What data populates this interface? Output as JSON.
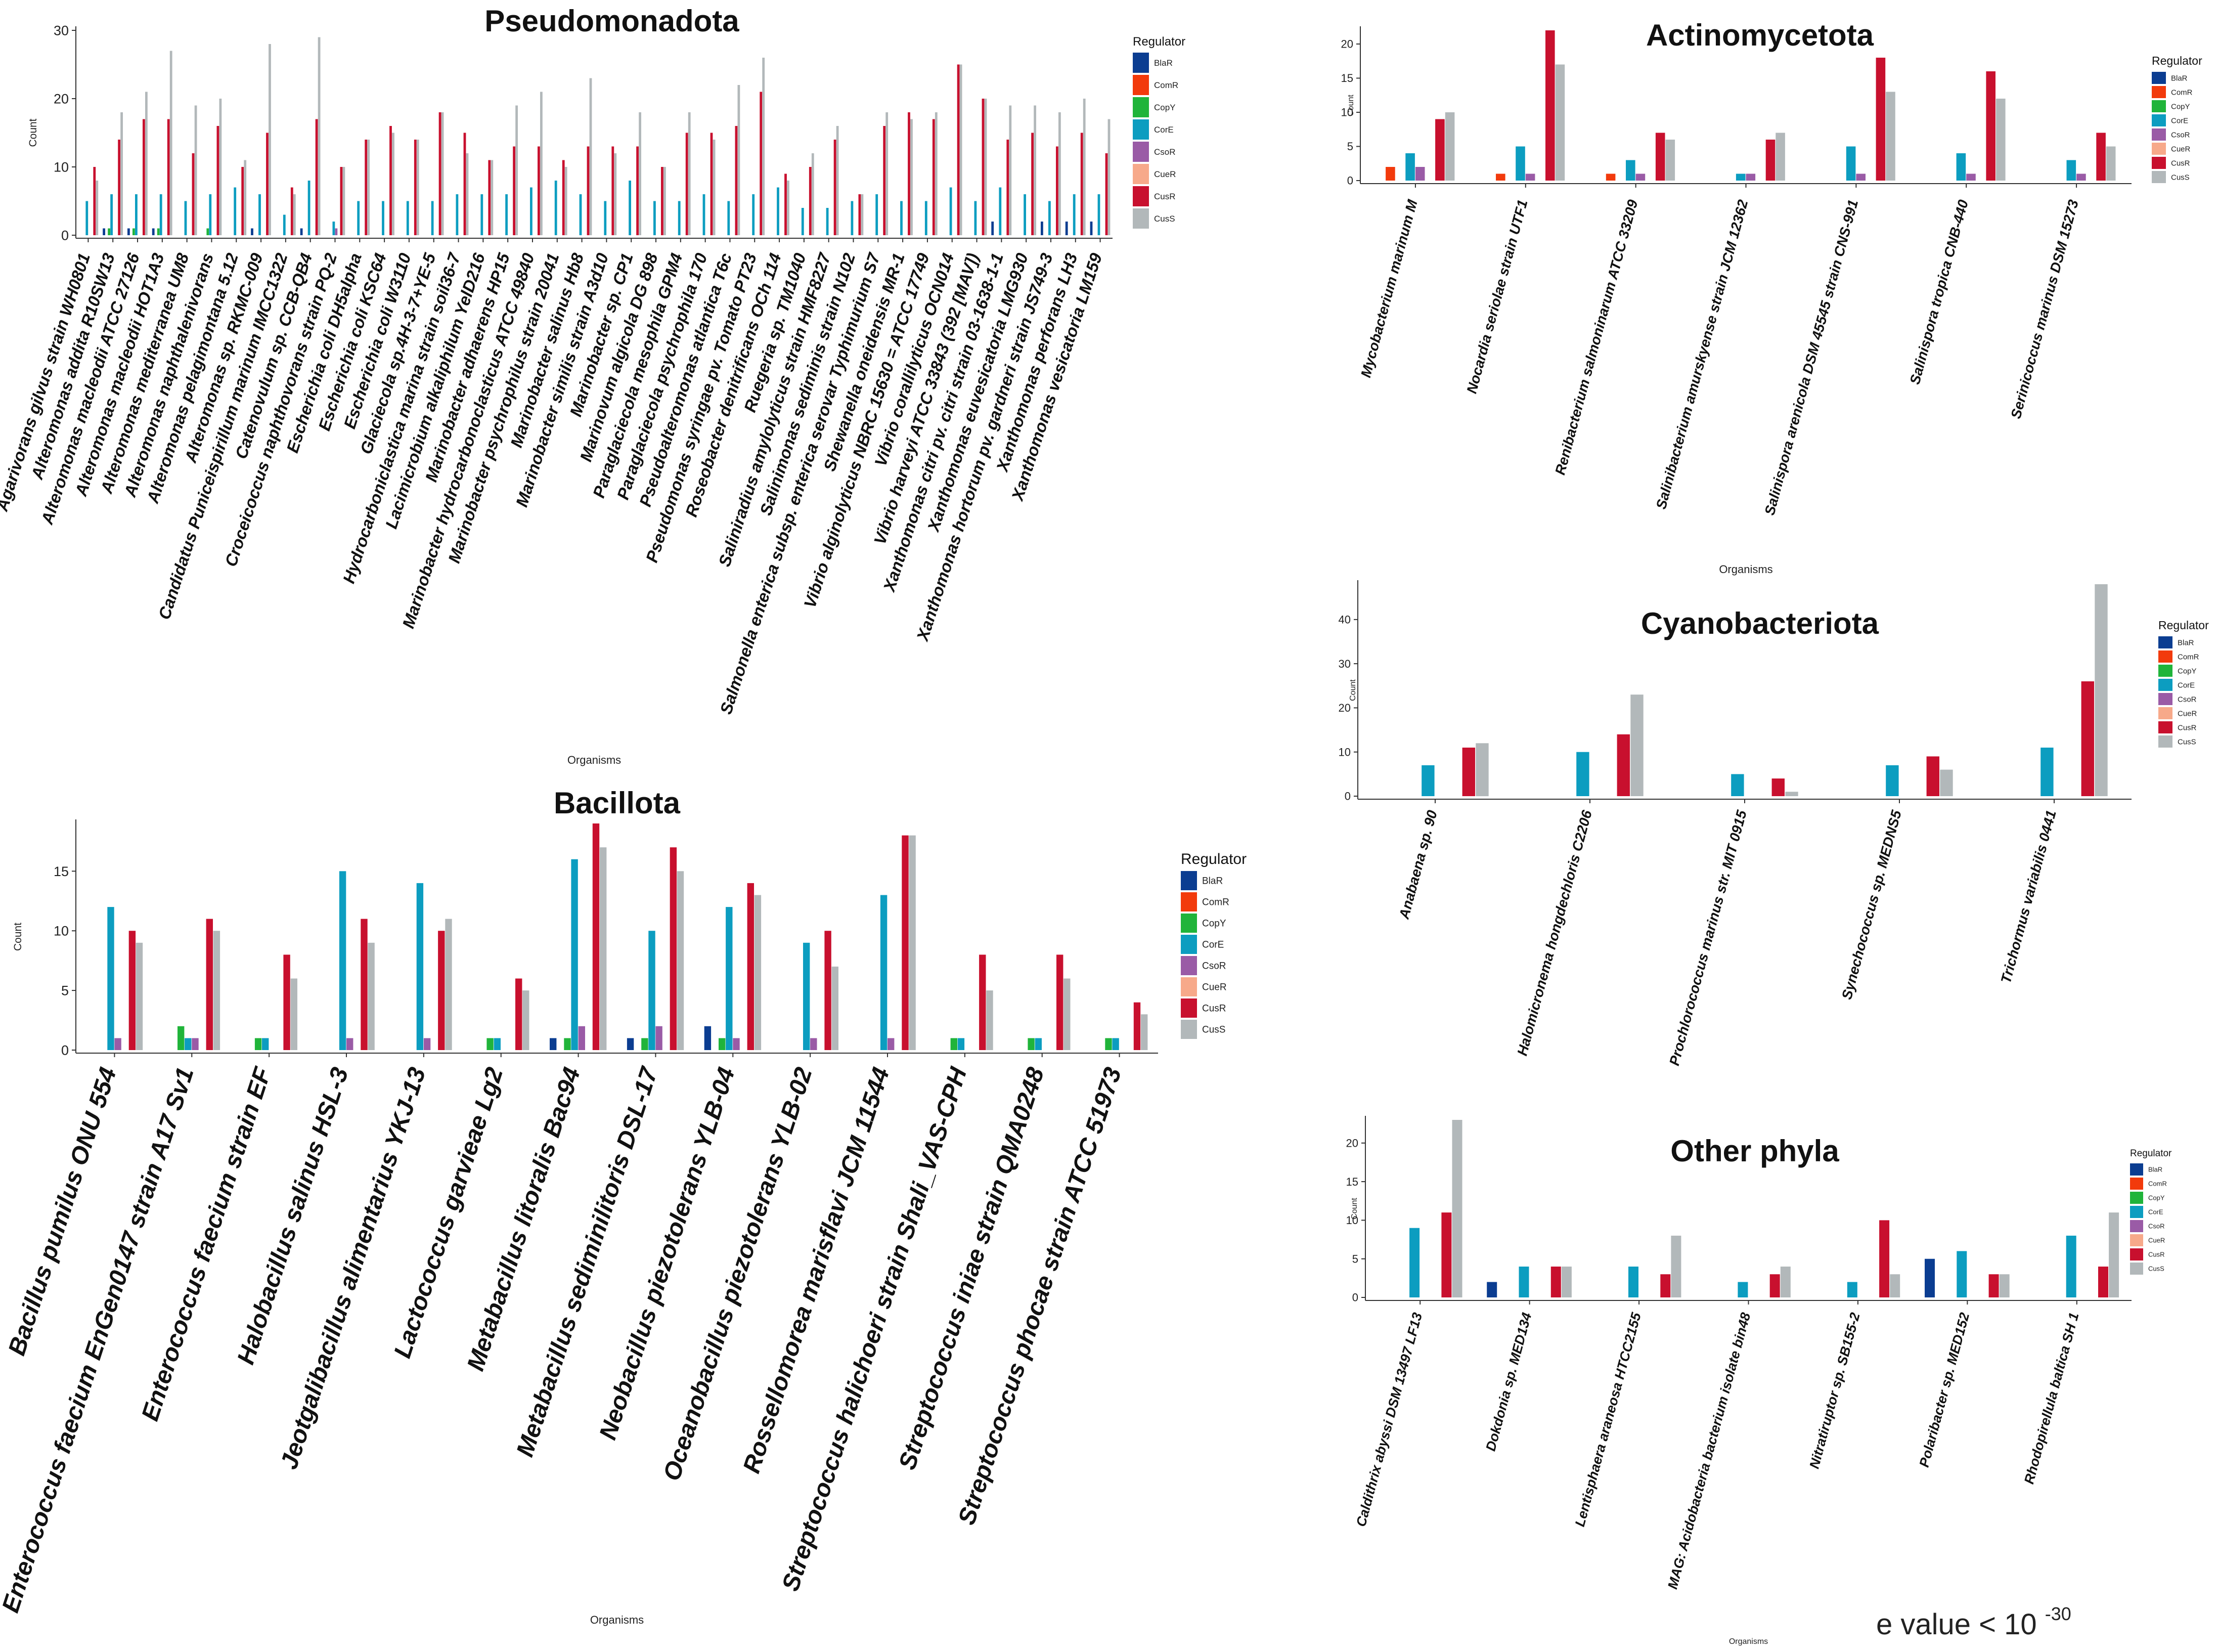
{
  "colors": {
    "BlaR": "#0B3D91",
    "ComR": "#F23A0C",
    "CopY": "#20B43A",
    "CorE": "#0C9DC0",
    "CsoR": "#9A5BA6",
    "CueR": "#F7A98A",
    "CusR": "#C8102E",
    "CusS": "#B2B8BA"
  },
  "footnote": {
    "text": "e value < 10",
    "exponent": "-30"
  },
  "chart_data": [
    {
      "type": "bar",
      "title": "Pseudomonadota",
      "xlabel": "Organisms",
      "ylabel": "Count",
      "ylim": [
        0,
        30
      ],
      "yticks": [
        0,
        10,
        20,
        30
      ],
      "legend_title": "Regulator",
      "legend_position": "right",
      "categories": [
        "Agarivorans gilvus strain WH0801",
        "Alteromonas addita  R10SW13",
        "Alteromonas macleodii ATCC 27126",
        "Alteromonas macleodii HOT1A3",
        "Alteromonas mediterranea UM8",
        "Alteromonas naphthalenivorans",
        "Alteromonas pelagimontana 5.12",
        "Alteromonas sp. RKMC-009",
        "Candidatus Puniceispirillum marinum IMCC1322",
        "Catenovulum sp. CCB-QB4",
        "Croceicoccus naphthovorans strain PQ-2",
        "Escherichia coli DH5alpha",
        "Escherichia coli KSC64",
        "Escherichia coli W3110",
        "Glaciecola sp.4H-3-7+YE-5",
        "Hydrocarboniclastica marina strain soil36-7",
        "Lacimicrobium alkaliphilum YelD216",
        "Marinobacter adhaerens HP15",
        "Marinobacter hydrocarbonoclasticus ATCC 49840",
        "Marinobacter psychrophilus strain 20041",
        "Marinobacter salinus  Hb8",
        "Marinobacter similis strain A3d10",
        "Marinobacter sp. CP1",
        "Marinovum algicola DG 898",
        "Paraglaciecola mesophila GPM4",
        "Paraglaciecola psychrophila 170",
        "Pseudoalteromonas atlantica T6c",
        "Pseudomonas syringae pv. Tomato PT23",
        "Roseobacter denitrificans OCh 114",
        "Ruegeria sp. TM1040",
        "Saliniradius amylolyticus strain HMF8227",
        "Salinimonas sediminis strain N102",
        "Salmonella enterica subsp. enterica serovar Typhimurium S7",
        "Shewanella oneidensis MR-1",
        "Vibrio alginolyticus NBRC 15630 = ATCC 17749",
        "Vibrio corallilyticus OCN014",
        "Vibrio harveyi ATCC 33843 (392 [MAV])",
        "Xanthomonas citri pv. citri strain 03-1638-1-1",
        "Xanthomonas euvesicatoria LMG930",
        "Xanthomonas hortorum pv. gardneri strain JS749-3",
        "Xanthomonas perforans LH3",
        "Xanthomonas vesicatoria LM159"
      ],
      "series": [
        {
          "name": "BlaR",
          "values": [
            0,
            1,
            1,
            1,
            0,
            0,
            0,
            1,
            0,
            1,
            0,
            0,
            0,
            0,
            0,
            0,
            0,
            0,
            0,
            0,
            0,
            0,
            0,
            0,
            0,
            0,
            0,
            0,
            0,
            0,
            0,
            0,
            0,
            0,
            0,
            0,
            0,
            2,
            0,
            2,
            2,
            2
          ]
        },
        {
          "name": "ComR",
          "values": [
            0,
            0,
            0,
            0,
            0,
            0,
            0,
            0,
            0,
            0,
            0,
            0,
            0,
            0,
            0,
            0,
            0,
            0,
            0,
            0,
            0,
            0,
            0,
            0,
            0,
            0,
            0,
            0,
            0,
            0,
            0,
            0,
            0,
            0,
            0,
            0,
            0,
            0,
            0,
            0,
            0,
            0
          ]
        },
        {
          "name": "CopY",
          "values": [
            0,
            1,
            1,
            1,
            0,
            1,
            0,
            0,
            0,
            0,
            0,
            0,
            0,
            0,
            0,
            0,
            0,
            0,
            0,
            0,
            0,
            0,
            0,
            0,
            0,
            0,
            0,
            0,
            0,
            0,
            0,
            0,
            0,
            0,
            0,
            0,
            0,
            0,
            0,
            0,
            0,
            0
          ]
        },
        {
          "name": "CorE",
          "values": [
            5,
            6,
            6,
            6,
            5,
            6,
            7,
            6,
            3,
            8,
            2,
            5,
            5,
            5,
            5,
            6,
            6,
            6,
            7,
            8,
            6,
            5,
            8,
            5,
            5,
            6,
            5,
            6,
            7,
            4,
            4,
            5,
            6,
            5,
            5,
            7,
            5,
            7,
            6,
            5,
            6,
            6
          ]
        },
        {
          "name": "CsoR",
          "values": [
            0,
            0,
            0,
            0,
            0,
            0,
            0,
            0,
            0,
            0,
            1,
            0,
            0,
            0,
            0,
            0,
            0,
            0,
            0,
            0,
            0,
            0,
            0,
            0,
            0,
            0,
            0,
            0,
            0,
            0,
            0,
            0,
            0,
            0,
            0,
            0,
            0,
            0,
            0,
            0,
            0,
            0
          ]
        },
        {
          "name": "CueR",
          "values": [
            0,
            0,
            0,
            0,
            0,
            0,
            0,
            0,
            0,
            0,
            0,
            0,
            0,
            0,
            0,
            0,
            0,
            0,
            0,
            0,
            0,
            0,
            0,
            0,
            0,
            0,
            0,
            0,
            0,
            0,
            0,
            0,
            0,
            0,
            0,
            0,
            0,
            0,
            0,
            0,
            0,
            0
          ]
        },
        {
          "name": "CusR",
          "values": [
            10,
            14,
            17,
            17,
            12,
            16,
            10,
            15,
            7,
            17,
            10,
            14,
            16,
            14,
            18,
            15,
            11,
            13,
            13,
            11,
            13,
            13,
            13,
            10,
            15,
            15,
            16,
            21,
            9,
            10,
            14,
            6,
            16,
            18,
            17,
            25,
            20,
            14,
            15,
            13,
            15,
            12
          ]
        },
        {
          "name": "CusS",
          "values": [
            8,
            18,
            21,
            27,
            19,
            20,
            11,
            28,
            6,
            29,
            10,
            14,
            15,
            14,
            18,
            12,
            11,
            19,
            21,
            10,
            23,
            12,
            18,
            10,
            18,
            14,
            22,
            26,
            8,
            12,
            16,
            6,
            18,
            17,
            18,
            25,
            20,
            19,
            19,
            18,
            20,
            17
          ]
        }
      ]
    },
    {
      "type": "bar",
      "title": "Actinomycetota",
      "xlabel": "Organisms",
      "ylabel": "Count",
      "ylim": [
        0,
        22
      ],
      "yticks": [
        0,
        5,
        10,
        15,
        20
      ],
      "legend_title": "Regulator",
      "legend_position": "right",
      "categories": [
        "Mycobacterium marinum M",
        "Nocardia seriolae strain UTF1",
        "Renibacterium salmoninarum ATCC 33209",
        "Salinibacterium amurskyense strain JCM 12362",
        "Salinispora arenicola DSM 45545 strain CNS-991",
        "Salinispora tropica CNB-440",
        "Serinicoccus marinus DSM 15273"
      ],
      "series": [
        {
          "name": "BlaR",
          "values": [
            0,
            0,
            0,
            0,
            0,
            0,
            0
          ]
        },
        {
          "name": "ComR",
          "values": [
            2,
            1,
            1,
            0,
            0,
            0,
            0
          ]
        },
        {
          "name": "CopY",
          "values": [
            0,
            0,
            0,
            0,
            0,
            0,
            0
          ]
        },
        {
          "name": "CorE",
          "values": [
            4,
            5,
            3,
            1,
            5,
            4,
            3
          ]
        },
        {
          "name": "CsoR",
          "values": [
            2,
            1,
            1,
            1,
            1,
            1,
            1
          ]
        },
        {
          "name": "CueR",
          "values": [
            0,
            0,
            0,
            0,
            0,
            0,
            0
          ]
        },
        {
          "name": "CusR",
          "values": [
            9,
            22,
            7,
            6,
            18,
            16,
            7
          ]
        },
        {
          "name": "CusS",
          "values": [
            10,
            17,
            6,
            7,
            13,
            12,
            5
          ]
        }
      ]
    },
    {
      "type": "bar",
      "title": "Cyanobacteriota",
      "xlabel": "Organisms",
      "ylabel": "Count",
      "ylim": [
        0,
        48
      ],
      "yticks": [
        0,
        10,
        20,
        30,
        40
      ],
      "legend_title": "Regulator",
      "legend_position": "right",
      "categories": [
        "Anabaena sp. 90",
        "Halomicronema hongdechloris C2206",
        "Prochlorococcus marinus str. MIT 0915",
        "Synechococcus sp. MEDNS5",
        "Trichormus variabilis 0441"
      ],
      "series": [
        {
          "name": "BlaR",
          "values": [
            0,
            0,
            0,
            0,
            0
          ]
        },
        {
          "name": "ComR",
          "values": [
            0,
            0,
            0,
            0,
            0
          ]
        },
        {
          "name": "CopY",
          "values": [
            0,
            0,
            0,
            0,
            0
          ]
        },
        {
          "name": "CorE",
          "values": [
            7,
            10,
            5,
            7,
            11
          ]
        },
        {
          "name": "CsoR",
          "values": [
            0,
            0,
            0,
            0,
            0
          ]
        },
        {
          "name": "CueR",
          "values": [
            0,
            0,
            0,
            0,
            0
          ]
        },
        {
          "name": "CusR",
          "values": [
            11,
            14,
            4,
            9,
            26
          ]
        },
        {
          "name": "CusS",
          "values": [
            12,
            23,
            1,
            6,
            48
          ]
        }
      ]
    },
    {
      "type": "bar",
      "title": "Bacillota",
      "xlabel": "Organisms",
      "ylabel": "Count",
      "ylim": [
        0,
        19
      ],
      "yticks": [
        0,
        5,
        10,
        15
      ],
      "legend_title": "Regulator",
      "legend_position": "right",
      "categories": [
        "Bacillus pumilus  ONU 554",
        "Enterococcus faecium EnGen0147 strain A17 Sv1",
        "Enterococcus faecium strain EF",
        "Halobacillus salinus HSL-3",
        "Jeotgalibacillus alimentarius YKJ-13",
        "Lactococcus garvieae Lg2",
        "Metabacillus litoralis Bac94",
        "Metabacillus sediminilitoris  DSL-17",
        "Neobacillus piezotolerans YLB-04",
        "Oceanobacillus piezotolerans  YLB-02",
        "Rossellomorea marisflavi JCM 11544",
        "Streptococcus halichoeri strain Shali_VAS-CPH",
        "Streptococcus iniae strain QMA0248",
        "Streptococcus phocae strain ATCC 51973"
      ],
      "series": [
        {
          "name": "BlaR",
          "values": [
            0,
            0,
            0,
            0,
            0,
            0,
            1,
            1,
            2,
            0,
            0,
            0,
            0,
            0
          ]
        },
        {
          "name": "ComR",
          "values": [
            0,
            0,
            0,
            0,
            0,
            0,
            0,
            0,
            0,
            0,
            0,
            0,
            0,
            0
          ]
        },
        {
          "name": "CopY",
          "values": [
            0,
            2,
            1,
            0,
            0,
            1,
            1,
            1,
            1,
            0,
            0,
            1,
            1,
            1
          ]
        },
        {
          "name": "CorE",
          "values": [
            12,
            1,
            1,
            15,
            14,
            1,
            16,
            10,
            12,
            9,
            13,
            1,
            1,
            1
          ]
        },
        {
          "name": "CsoR",
          "values": [
            1,
            1,
            0,
            1,
            1,
            0,
            2,
            2,
            1,
            1,
            1,
            0,
            0,
            0
          ]
        },
        {
          "name": "CueR",
          "values": [
            0,
            0,
            0,
            0,
            0,
            0,
            0,
            0,
            0,
            0,
            0,
            0,
            0,
            0
          ]
        },
        {
          "name": "CusR",
          "values": [
            10,
            11,
            8,
            11,
            10,
            6,
            19,
            17,
            14,
            10,
            18,
            8,
            8,
            4
          ]
        },
        {
          "name": "CusS",
          "values": [
            9,
            10,
            6,
            9,
            11,
            5,
            17,
            15,
            13,
            7,
            18,
            5,
            6,
            3
          ]
        }
      ]
    },
    {
      "type": "bar",
      "title": "Other phyla",
      "xlabel": "Organisms",
      "ylabel": "Count",
      "ylim": [
        0,
        23
      ],
      "yticks": [
        0,
        5,
        10,
        15,
        20
      ],
      "legend_title": "Regulator",
      "legend_position": "right",
      "categories": [
        "Caldithrix abyssi DSM 13497 LF13",
        "Dokdonia sp. MED134",
        "Lentisphaera araneosa HTCC2155",
        "MAG: Acidobacteria bacterium isolate bin48",
        "Nitratiruptor sp. SB155-2",
        "Polaribacter sp. MED152",
        "Rhodopirellula baltica SH 1"
      ],
      "series": [
        {
          "name": "BlaR",
          "values": [
            0,
            2,
            0,
            0,
            0,
            5,
            0
          ]
        },
        {
          "name": "ComR",
          "values": [
            0,
            0,
            0,
            0,
            0,
            0,
            0
          ]
        },
        {
          "name": "CopY",
          "values": [
            0,
            0,
            0,
            0,
            0,
            0,
            0
          ]
        },
        {
          "name": "CorE",
          "values": [
            9,
            4,
            4,
            2,
            2,
            6,
            8
          ]
        },
        {
          "name": "CsoR",
          "values": [
            0,
            0,
            0,
            0,
            0,
            0,
            0
          ]
        },
        {
          "name": "CueR",
          "values": [
            0,
            0,
            0,
            0,
            0,
            0,
            0
          ]
        },
        {
          "name": "CusR",
          "values": [
            11,
            4,
            3,
            3,
            10,
            3,
            4
          ]
        },
        {
          "name": "CusS",
          "values": [
            23,
            4,
            8,
            4,
            3,
            3,
            11
          ]
        }
      ]
    }
  ]
}
